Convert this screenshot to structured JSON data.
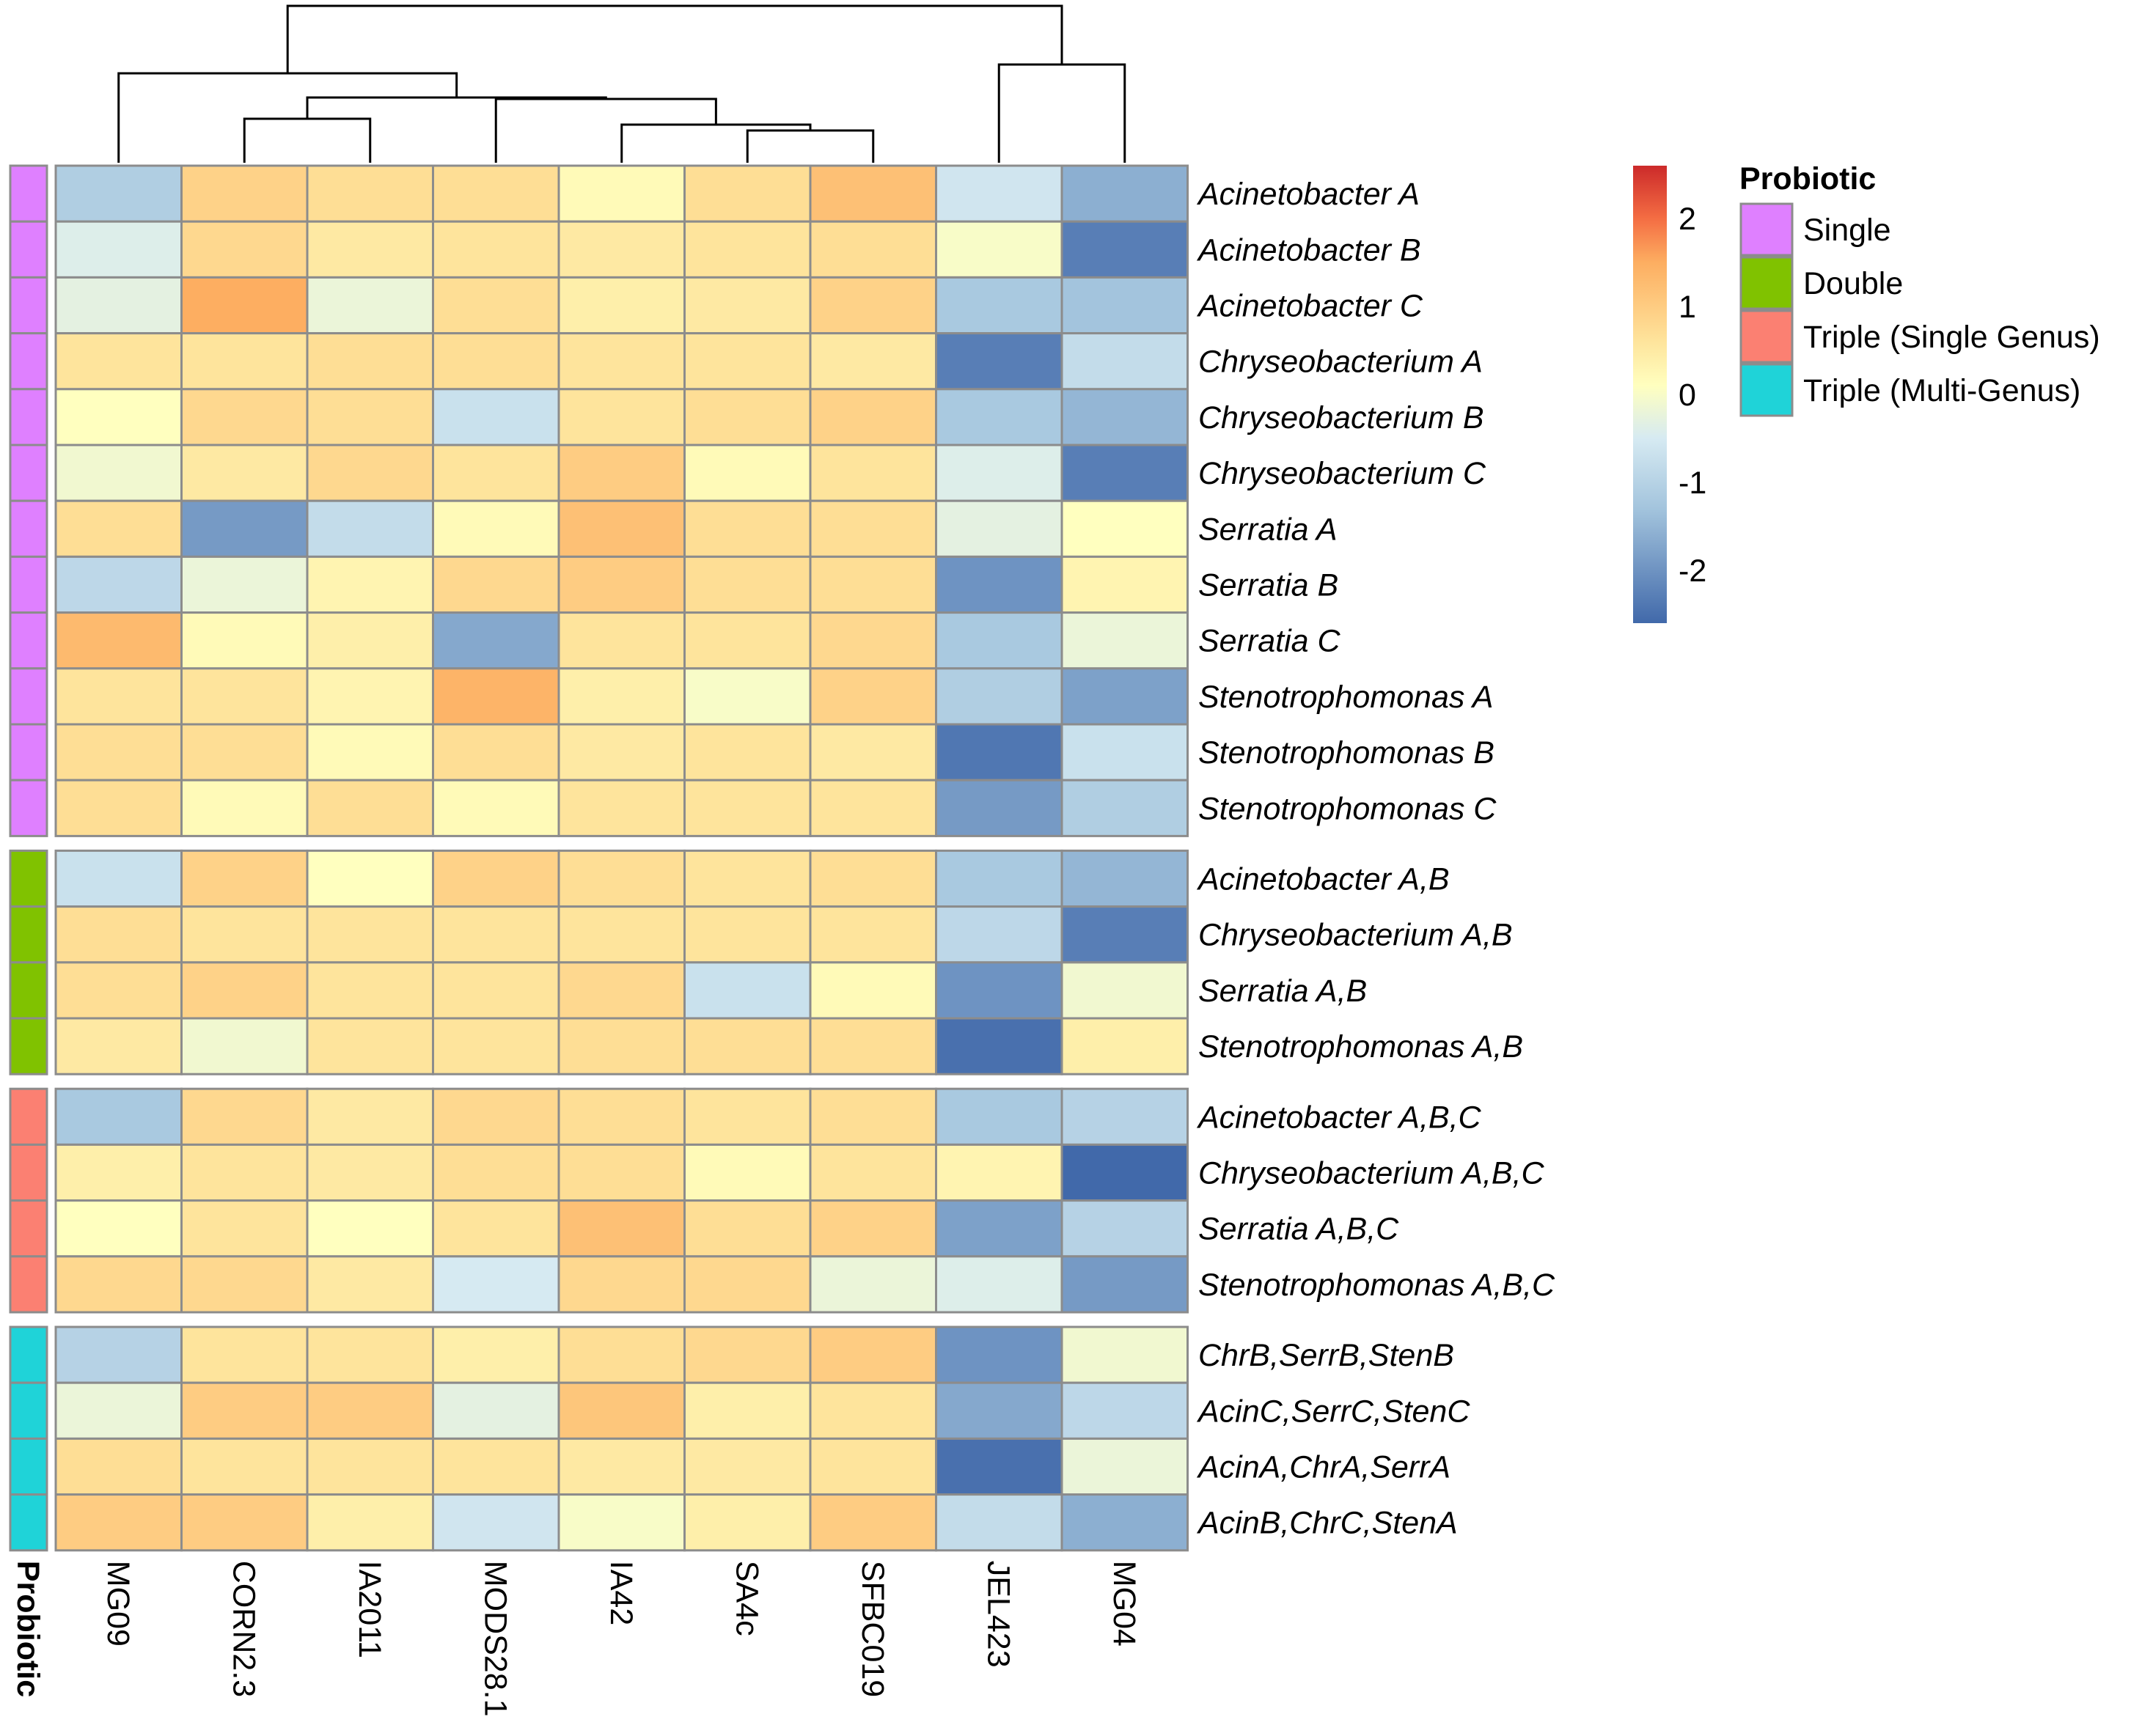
{
  "chart_data": {
    "type": "heatmap",
    "columns": [
      "MG09",
      "CORN2.3",
      "IA2011",
      "MODS28.1",
      "IA42",
      "SA4c",
      "SFBC019",
      "JEL423",
      "MG04"
    ],
    "rows": [
      {
        "label": "Acinetobacter A",
        "group": "Single",
        "values": [
          -1.1,
          0.9,
          0.7,
          0.7,
          0.2,
          0.7,
          1.2,
          -0.6,
          -1.6
        ]
      },
      {
        "label": "Acinetobacter B",
        "group": "Single",
        "values": [
          -0.4,
          0.8,
          0.5,
          0.6,
          0.5,
          0.6,
          0.7,
          0.0,
          -2.3
        ]
      },
      {
        "label": "Acinetobacter C",
        "group": "Single",
        "values": [
          -0.3,
          1.5,
          -0.2,
          0.7,
          0.4,
          0.5,
          0.9,
          -1.2,
          -1.3
        ]
      },
      {
        "label": "Chryseobacterium A",
        "group": "Single",
        "values": [
          0.6,
          0.6,
          0.7,
          0.7,
          0.6,
          0.6,
          0.5,
          -2.3,
          -0.8
        ]
      },
      {
        "label": "Chryseobacterium B",
        "group": "Single",
        "values": [
          0.1,
          0.8,
          0.7,
          -0.7,
          0.6,
          0.7,
          0.9,
          -1.2,
          -1.5
        ]
      },
      {
        "label": "Chryseobacterium C",
        "group": "Single",
        "values": [
          -0.1,
          0.5,
          0.8,
          0.6,
          1.0,
          0.2,
          0.6,
          -0.4,
          -2.3
        ]
      },
      {
        "label": "Serratia A",
        "group": "Single",
        "values": [
          0.7,
          -1.9,
          -0.8,
          0.2,
          1.2,
          0.7,
          0.7,
          -0.3,
          0.1
        ]
      },
      {
        "label": "Serratia B",
        "group": "Single",
        "values": [
          -0.9,
          -0.2,
          0.3,
          0.8,
          1.0,
          0.7,
          0.7,
          -2.0,
          0.3
        ]
      },
      {
        "label": "Serratia C",
        "group": "Single",
        "values": [
          1.3,
          0.2,
          0.4,
          -1.7,
          0.6,
          0.6,
          0.8,
          -1.2,
          -0.2
        ]
      },
      {
        "label": "Stenotrophomonas A",
        "group": "Single",
        "values": [
          0.6,
          0.6,
          0.3,
          1.4,
          0.4,
          0.0,
          0.9,
          -1.1,
          -1.8
        ]
      },
      {
        "label": "Stenotrophomonas B",
        "group": "Single",
        "values": [
          0.7,
          0.7,
          0.2,
          0.7,
          0.5,
          0.6,
          0.5,
          -2.4,
          -0.7
        ]
      },
      {
        "label": "Stenotrophomonas C",
        "group": "Single",
        "values": [
          0.7,
          0.2,
          0.7,
          0.2,
          0.6,
          0.6,
          0.6,
          -1.9,
          -1.1
        ]
      },
      {
        "label": "Acinetobacter A,B",
        "group": "Double",
        "values": [
          -0.7,
          0.9,
          0.1,
          0.9,
          0.7,
          0.6,
          0.7,
          -1.2,
          -1.5
        ]
      },
      {
        "label": "Chryseobacterium A,B",
        "group": "Double",
        "values": [
          0.7,
          0.6,
          0.6,
          0.6,
          0.6,
          0.6,
          0.6,
          -0.9,
          -2.3
        ]
      },
      {
        "label": "Serratia A,B",
        "group": "Double",
        "values": [
          0.7,
          0.9,
          0.6,
          0.6,
          0.8,
          -0.7,
          0.2,
          -2.0,
          -0.1
        ]
      },
      {
        "label": "Stenotrophomonas A,B",
        "group": "Double",
        "values": [
          0.5,
          -0.1,
          0.6,
          0.6,
          0.7,
          0.7,
          0.7,
          -2.5,
          0.4
        ]
      },
      {
        "label": "Acinetobacter A,B,C",
        "group": "Triple (Single Genus)",
        "values": [
          -1.2,
          0.8,
          0.5,
          0.8,
          0.7,
          0.6,
          0.7,
          -1.2,
          -1.0
        ]
      },
      {
        "label": "Chryseobacterium A,B,C",
        "group": "Triple (Single Genus)",
        "values": [
          0.4,
          0.6,
          0.5,
          0.7,
          0.7,
          0.2,
          0.6,
          0.3,
          -2.6
        ]
      },
      {
        "label": "Serratia A,B,C",
        "group": "Triple (Single Genus)",
        "values": [
          0.1,
          0.6,
          0.1,
          0.6,
          1.2,
          0.7,
          0.9,
          -1.8,
          -1.0
        ]
      },
      {
        "label": "Stenotrophomonas A,B,C",
        "group": "Triple (Single Genus)",
        "values": [
          0.8,
          0.8,
          0.5,
          -0.5,
          0.8,
          0.8,
          -0.2,
          -0.4,
          -1.9
        ]
      },
      {
        "label": "ChrB,SerrB,StenB",
        "group": "Triple (Multi-Genus)",
        "values": [
          -1.0,
          0.6,
          0.6,
          0.4,
          0.7,
          0.8,
          1.0,
          -2.0,
          -0.1
        ]
      },
      {
        "label": "AcinC,SerrC,StenC",
        "group": "Triple (Multi-Genus)",
        "values": [
          -0.2,
          1.0,
          1.0,
          -0.3,
          1.1,
          0.4,
          0.6,
          -1.7,
          -0.9
        ]
      },
      {
        "label": "AcinA,ChrA,SerrA",
        "group": "Triple (Multi-Genus)",
        "values": [
          0.7,
          0.6,
          0.6,
          0.6,
          0.5,
          0.5,
          0.6,
          -2.5,
          -0.2
        ]
      },
      {
        "label": "AcinB,ChrC,StenA",
        "group": "Triple (Multi-Genus)",
        "values": [
          1.0,
          1.0,
          0.4,
          -0.6,
          0.0,
          0.4,
          1.0,
          -0.8,
          -1.6
        ]
      }
    ],
    "color_scale": {
      "min": -2.6,
      "max": 2.6,
      "stops": [
        {
          "value": -2.6,
          "color": "#4169aa"
        },
        {
          "value": -1.3,
          "color": "#a3c4dd"
        },
        {
          "value": -0.5,
          "color": "#d6eaf2"
        },
        {
          "value": 0.1,
          "color": "#ffffbf"
        },
        {
          "value": 0.6,
          "color": "#fee49c"
        },
        {
          "value": 1.5,
          "color": "#fdae61"
        },
        {
          "value": 2.0,
          "color": "#f46d43"
        },
        {
          "value": 2.6,
          "color": "#cc2a2a"
        }
      ],
      "ticks": [
        2,
        1,
        0,
        -1,
        -2
      ]
    },
    "annotation": {
      "title": "Probiotic",
      "groups": [
        {
          "name": "Single",
          "color": "#df80ff"
        },
        {
          "name": "Double",
          "color": "#80c200"
        },
        {
          "name": "Triple (Single Genus)",
          "color": "#fb8072"
        },
        {
          "name": "Triple (Multi-Genus)",
          "color": "#1fd3d8"
        }
      ]
    },
    "dendrogram": "columns clustered: (((MG09,((CORN2.3,IA2011),(MODS28.1,(IA42,(SA4c,SFBC019)))))),(JEL423,MG04))"
  }
}
